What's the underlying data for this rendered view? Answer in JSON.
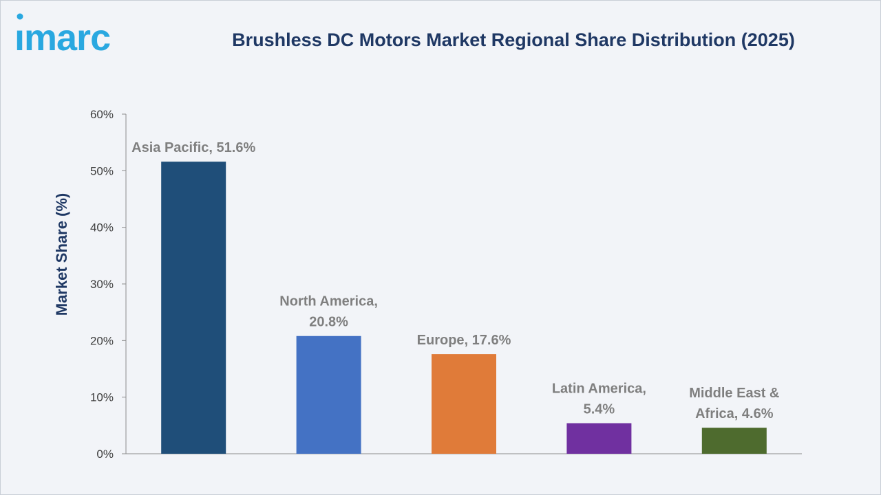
{
  "logo": {
    "text": "imarc",
    "color": "#29a8e0"
  },
  "chart_data": {
    "type": "bar",
    "title": "Brushless DC Motors Market Regional Share Distribution (2025)",
    "xlabel": "",
    "ylabel": "Market Share (%)",
    "ylim": [
      0,
      60
    ],
    "yticks": [
      0,
      10,
      20,
      30,
      40,
      50,
      60
    ],
    "ytick_labels": [
      "0%",
      "10%",
      "20%",
      "30%",
      "40%",
      "50%",
      "60%"
    ],
    "grid": false,
    "categories": [
      "Asia Pacific",
      "North America",
      "Europe",
      "Latin America",
      "Middle East & Africa"
    ],
    "values": [
      51.6,
      20.8,
      17.6,
      5.4,
      4.6
    ],
    "data_labels": [
      [
        "Asia Pacific, 51.6%"
      ],
      [
        "North America,",
        "20.8%"
      ],
      [
        "Europe, 17.6%"
      ],
      [
        "Latin America,",
        "5.4%"
      ],
      [
        "Middle East &",
        "Africa, 4.6%"
      ]
    ],
    "colors": [
      "#1f4e79",
      "#4472c4",
      "#e07b39",
      "#7030a0",
      "#4e6b2e"
    ],
    "title_color": "#1f3864"
  }
}
